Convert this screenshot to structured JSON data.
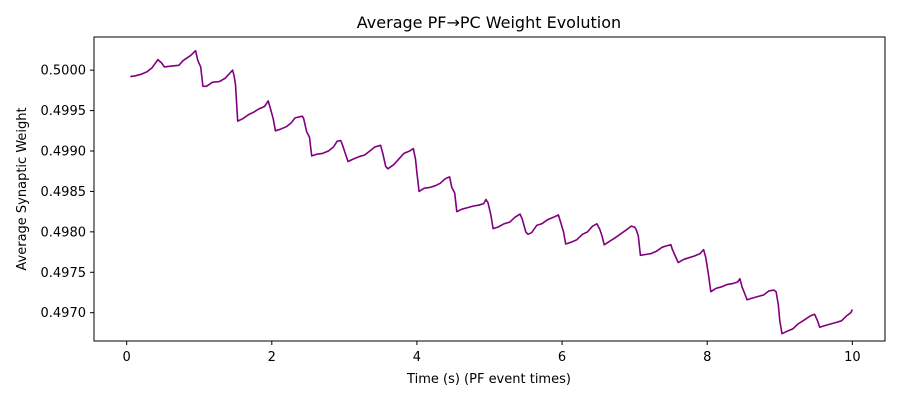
{
  "chart_data": {
    "type": "line",
    "title": "Average PF→PC Weight Evolution",
    "xlabel": "Time (s) (PF event times)",
    "ylabel": "Average Synaptic Weight",
    "xlim": [
      -0.45,
      10.45
    ],
    "ylim": [
      0.49665,
      0.50041
    ],
    "xticks": [
      0,
      2,
      4,
      6,
      8,
      10
    ],
    "yticks": [
      0.497,
      0.4975,
      0.498,
      0.4985,
      0.499,
      0.4995,
      0.5
    ],
    "ytick_labels": [
      "0.4970",
      "0.4975",
      "0.4980",
      "0.4985",
      "0.4990",
      "0.4995",
      "0.5000"
    ],
    "grid": false,
    "legend": "none",
    "series": [
      {
        "color": "#800080",
        "points": [
          [
            0.05,
            0.49992
          ],
          [
            0.12,
            0.49993
          ],
          [
            0.2,
            0.49995
          ],
          [
            0.28,
            0.49998
          ],
          [
            0.35,
            0.50003
          ],
          [
            0.43,
            0.50013
          ],
          [
            0.48,
            0.50009
          ],
          [
            0.52,
            0.50004
          ],
          [
            0.62,
            0.50005
          ],
          [
            0.72,
            0.50006
          ],
          [
            0.78,
            0.50012
          ],
          [
            0.88,
            0.50018
          ],
          [
            0.95,
            0.50024
          ],
          [
            0.98,
            0.50012
          ],
          [
            1.02,
            0.50004
          ],
          [
            1.05,
            0.4998
          ],
          [
            1.1,
            0.4998
          ],
          [
            1.18,
            0.49985
          ],
          [
            1.28,
            0.49986
          ],
          [
            1.36,
            0.4999
          ],
          [
            1.46,
            0.5
          ],
          [
            1.48,
            0.49993
          ],
          [
            1.5,
            0.49982
          ],
          [
            1.53,
            0.49937
          ],
          [
            1.6,
            0.4994
          ],
          [
            1.68,
            0.49945
          ],
          [
            1.75,
            0.49948
          ],
          [
            1.82,
            0.49952
          ],
          [
            1.9,
            0.49955
          ],
          [
            1.95,
            0.49962
          ],
          [
            1.98,
            0.49953
          ],
          [
            2.02,
            0.4994
          ],
          [
            2.05,
            0.49925
          ],
          [
            2.12,
            0.49927
          ],
          [
            2.2,
            0.4993
          ],
          [
            2.27,
            0.49935
          ],
          [
            2.32,
            0.49941
          ],
          [
            2.42,
            0.49943
          ],
          [
            2.44,
            0.4994
          ],
          [
            2.48,
            0.49924
          ],
          [
            2.52,
            0.49917
          ],
          [
            2.55,
            0.49894
          ],
          [
            2.62,
            0.49896
          ],
          [
            2.7,
            0.49897
          ],
          [
            2.78,
            0.499
          ],
          [
            2.85,
            0.49905
          ],
          [
            2.9,
            0.49912
          ],
          [
            2.95,
            0.49913
          ],
          [
            2.98,
            0.49906
          ],
          [
            3.02,
            0.49895
          ],
          [
            3.05,
            0.49887
          ],
          [
            3.12,
            0.4989
          ],
          [
            3.2,
            0.49893
          ],
          [
            3.28,
            0.49895
          ],
          [
            3.35,
            0.499
          ],
          [
            3.42,
            0.49905
          ],
          [
            3.5,
            0.49907
          ],
          [
            3.53,
            0.49897
          ],
          [
            3.57,
            0.49881
          ],
          [
            3.6,
            0.49878
          ],
          [
            3.68,
            0.49883
          ],
          [
            3.75,
            0.4989
          ],
          [
            3.82,
            0.49897
          ],
          [
            3.9,
            0.499
          ],
          [
            3.95,
            0.49903
          ],
          [
            3.98,
            0.4989
          ],
          [
            4.0,
            0.49873
          ],
          [
            4.03,
            0.4985
          ],
          [
            4.1,
            0.49854
          ],
          [
            4.18,
            0.49855
          ],
          [
            4.25,
            0.49857
          ],
          [
            4.32,
            0.4986
          ],
          [
            4.38,
            0.49865
          ],
          [
            4.42,
            0.49867
          ],
          [
            4.45,
            0.49868
          ],
          [
            4.48,
            0.49855
          ],
          [
            4.52,
            0.49848
          ],
          [
            4.55,
            0.49825
          ],
          [
            4.62,
            0.49828
          ],
          [
            4.7,
            0.4983
          ],
          [
            4.78,
            0.49832
          ],
          [
            4.85,
            0.49833
          ],
          [
            4.92,
            0.49835
          ],
          [
            4.95,
            0.4984
          ],
          [
            4.98,
            0.49836
          ],
          [
            5.02,
            0.4982
          ],
          [
            5.05,
            0.49804
          ],
          [
            5.12,
            0.49806
          ],
          [
            5.2,
            0.4981
          ],
          [
            5.28,
            0.49812
          ],
          [
            5.35,
            0.49818
          ],
          [
            5.42,
            0.49822
          ],
          [
            5.45,
            0.49816
          ],
          [
            5.5,
            0.498
          ],
          [
            5.53,
            0.49797
          ],
          [
            5.58,
            0.49799
          ],
          [
            5.65,
            0.49808
          ],
          [
            5.72,
            0.4981
          ],
          [
            5.8,
            0.49815
          ],
          [
            5.88,
            0.49818
          ],
          [
            5.95,
            0.49821
          ],
          [
            5.98,
            0.49812
          ],
          [
            6.02,
            0.498
          ],
          [
            6.05,
            0.49785
          ],
          [
            6.12,
            0.49787
          ],
          [
            6.2,
            0.4979
          ],
          [
            6.28,
            0.49797
          ],
          [
            6.35,
            0.498
          ],
          [
            6.42,
            0.49807
          ],
          [
            6.48,
            0.4981
          ],
          [
            6.52,
            0.49803
          ],
          [
            6.55,
            0.49795
          ],
          [
            6.58,
            0.49784
          ],
          [
            6.65,
            0.49788
          ],
          [
            6.72,
            0.49792
          ],
          [
            6.8,
            0.49797
          ],
          [
            6.88,
            0.49802
          ],
          [
            6.95,
            0.49807
          ],
          [
            7.0,
            0.49806
          ],
          [
            7.02,
            0.49803
          ],
          [
            7.05,
            0.49795
          ],
          [
            7.08,
            0.49771
          ],
          [
            7.15,
            0.49772
          ],
          [
            7.22,
            0.49773
          ],
          [
            7.3,
            0.49776
          ],
          [
            7.38,
            0.49781
          ],
          [
            7.45,
            0.49783
          ],
          [
            7.5,
            0.49784
          ],
          [
            7.52,
            0.49778
          ],
          [
            7.55,
            0.49772
          ],
          [
            7.6,
            0.49762
          ],
          [
            7.68,
            0.49766
          ],
          [
            7.75,
            0.49768
          ],
          [
            7.82,
            0.4977
          ],
          [
            7.9,
            0.49773
          ],
          [
            7.95,
            0.49778
          ],
          [
            7.98,
            0.49768
          ],
          [
            8.02,
            0.49745
          ],
          [
            8.05,
            0.49726
          ],
          [
            8.12,
            0.4973
          ],
          [
            8.2,
            0.49732
          ],
          [
            8.28,
            0.49735
          ],
          [
            8.35,
            0.49736
          ],
          [
            8.42,
            0.49738
          ],
          [
            8.45,
            0.49742
          ],
          [
            8.48,
            0.49732
          ],
          [
            8.52,
            0.49723
          ],
          [
            8.55,
            0.49716
          ],
          [
            8.62,
            0.49718
          ],
          [
            8.7,
            0.4972
          ],
          [
            8.78,
            0.49722
          ],
          [
            8.85,
            0.49727
          ],
          [
            8.92,
            0.49728
          ],
          [
            8.95,
            0.49726
          ],
          [
            8.98,
            0.4971
          ],
          [
            9.0,
            0.4969
          ],
          [
            9.03,
            0.49674
          ],
          [
            9.1,
            0.49677
          ],
          [
            9.18,
            0.4968
          ],
          [
            9.25,
            0.49686
          ],
          [
            9.32,
            0.4969
          ],
          [
            9.42,
            0.49696
          ],
          [
            9.48,
            0.49698
          ],
          [
            9.52,
            0.4969
          ],
          [
            9.55,
            0.49682
          ],
          [
            9.62,
            0.49684
          ],
          [
            9.7,
            0.49686
          ],
          [
            9.78,
            0.49688
          ],
          [
            9.85,
            0.4969
          ],
          [
            9.92,
            0.49696
          ],
          [
            9.98,
            0.497
          ],
          [
            10.0,
            0.49704
          ]
        ]
      }
    ]
  }
}
